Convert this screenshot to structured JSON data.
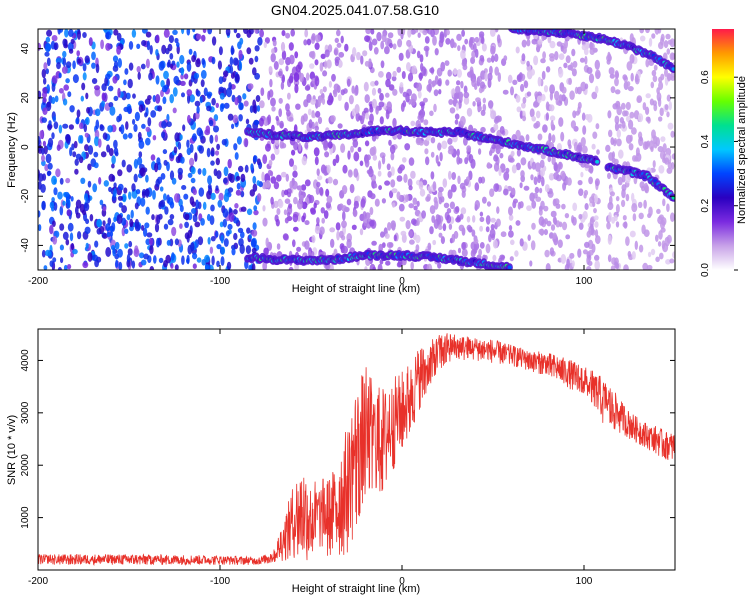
{
  "title": "GN04.2025.041.07.58.G10",
  "chart_data": [
    {
      "type": "heatmap",
      "xlabel": "Height of straight line (km)",
      "ylabel": "Frequency (Hz)",
      "xlim": [
        -200,
        150
      ],
      "ylim": [
        -50,
        48
      ],
      "x_ticks": [
        -200,
        -100,
        0,
        100
      ],
      "y_ticks": [
        -40,
        -20,
        0,
        20,
        40
      ],
      "colorbar": {
        "label": "Normalized spectral amplitude",
        "range": [
          0.0,
          0.75
        ],
        "ticks": [
          0.0,
          0.2,
          0.4,
          0.6
        ],
        "colors": [
          "#ffffff",
          "#c8a2e8",
          "#7b2be0",
          "#2a00c0",
          "#0044ff",
          "#00c8ff",
          "#00e090",
          "#66ff00",
          "#ffff00",
          "#ff9900",
          "#ff1a4a"
        ]
      },
      "traces": [
        {
          "name": "",
          "points": [
            [
              -85,
              6
            ],
            [
              -70,
              5
            ],
            [
              -50,
              4
            ],
            [
              -30,
              5
            ],
            [
              -10,
              7
            ],
            [
              10,
              6
            ],
            [
              30,
              6
            ],
            [
              50,
              3
            ],
            [
              70,
              0
            ],
            [
              90,
              -3
            ],
            [
              108,
              -6
            ]
          ]
        },
        {
          "name": "",
          "points": [
            [
              113,
              -8
            ],
            [
              125,
              -10
            ],
            [
              135,
              -12
            ],
            [
              145,
              -18
            ],
            [
              150,
              -21
            ]
          ]
        },
        {
          "name": "",
          "points": [
            [
              60,
              48
            ],
            [
              80,
              47
            ],
            [
              95,
              46
            ],
            [
              110,
              44
            ],
            [
              125,
              41
            ],
            [
              140,
              36
            ],
            [
              150,
              31
            ]
          ]
        },
        {
          "name": "",
          "points": [
            [
              -85,
              -45
            ],
            [
              -60,
              -46
            ],
            [
              -40,
              -46
            ],
            [
              -20,
              -44
            ],
            [
              0,
              -44
            ],
            [
              20,
              -45
            ],
            [
              40,
              -47
            ],
            [
              60,
              -49
            ]
          ]
        }
      ],
      "gap_x": [
        108,
        113
      ]
    },
    {
      "type": "line",
      "xlabel": "Height of straight line (km)",
      "ylabel": "SNR (10 * v/v)",
      "xlim": [
        -200,
        150
      ],
      "ylim": [
        0,
        4600
      ],
      "x_ticks": [
        -200,
        -100,
        0,
        100
      ],
      "y_ticks": [
        1000,
        2000,
        3000,
        4000
      ],
      "series_color": "#e8312a",
      "envelope": {
        "x": [
          -200,
          -150,
          -100,
          -80,
          -75,
          -70,
          -60,
          -55,
          -50,
          -40,
          -35,
          -30,
          -25,
          -20,
          -15,
          -10,
          -5,
          0,
          5,
          10,
          15,
          20,
          25,
          30,
          40,
          50,
          60,
          70,
          80,
          90,
          100,
          105,
          110,
          115,
          120,
          125,
          130,
          135,
          140,
          145,
          150
        ],
        "low": [
          100,
          100,
          100,
          100,
          100,
          150,
          200,
          200,
          150,
          200,
          250,
          300,
          800,
          1000,
          1300,
          1500,
          1900,
          2200,
          2600,
          3100,
          3400,
          3800,
          3900,
          4000,
          4000,
          3950,
          3900,
          3800,
          3700,
          3500,
          3300,
          3050,
          2800,
          2700,
          2600,
          2500,
          2400,
          2300,
          2200,
          2100,
          2100
        ],
        "high": [
          300,
          300,
          280,
          250,
          300,
          400,
          1600,
          2000,
          1700,
          1800,
          2100,
          2800,
          3600,
          3900,
          3600,
          3500,
          3700,
          3800,
          4000,
          4300,
          4350,
          4500,
          4550,
          4500,
          4450,
          4400,
          4300,
          4200,
          4150,
          4050,
          3900,
          3800,
          3700,
          3500,
          3250,
          3050,
          2900,
          2800,
          2750,
          2650,
          2600
        ]
      }
    }
  ]
}
